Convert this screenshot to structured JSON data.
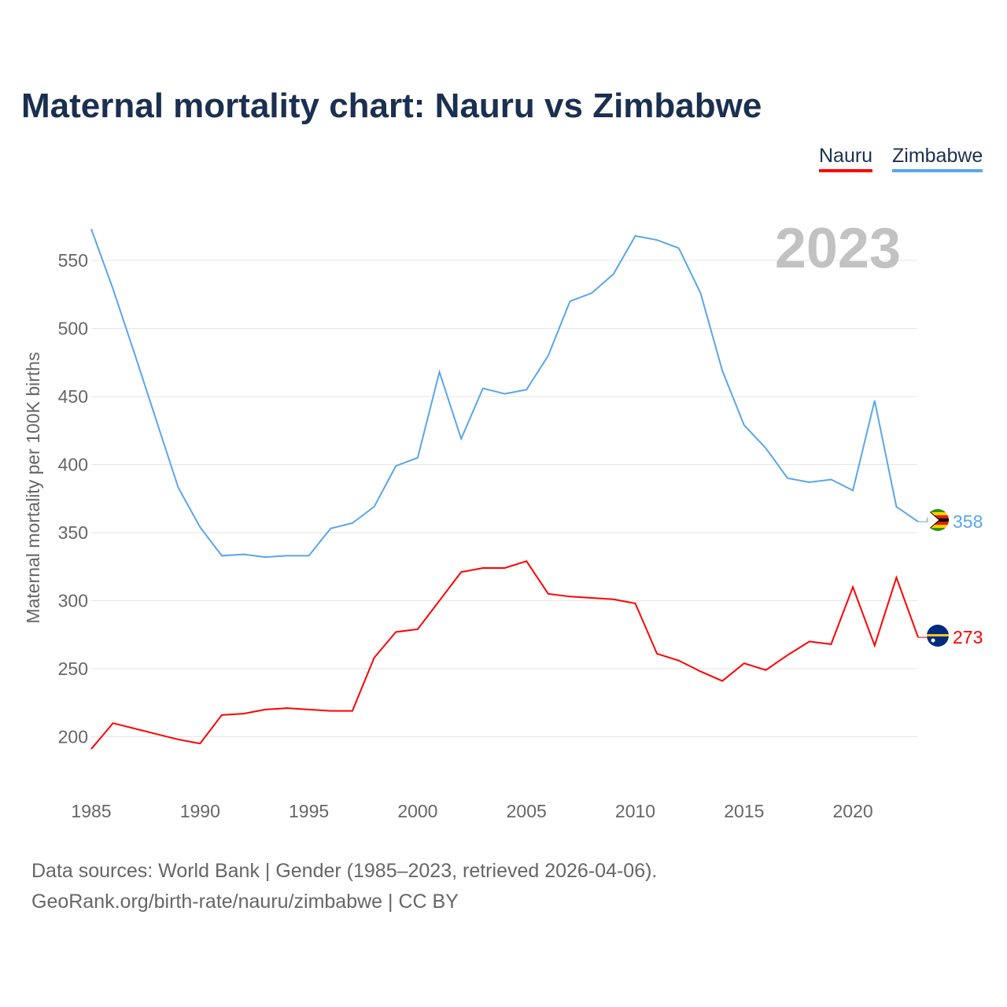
{
  "chart_data": {
    "type": "line",
    "title": "Maternal mortality chart: Nauru vs Zimbabwe",
    "xlabel": "",
    "ylabel": "Maternal mortality per 100K births",
    "year_label": "2023",
    "xlim": [
      1985,
      2023
    ],
    "ylim": [
      170,
      580
    ],
    "xticks": [
      1985,
      1990,
      1995,
      2000,
      2005,
      2010,
      2015,
      2020
    ],
    "yticks": [
      200,
      250,
      300,
      350,
      400,
      450,
      500,
      550
    ],
    "grid": true,
    "legend_placement": "top-right",
    "x": [
      1985,
      1986,
      1987,
      1988,
      1989,
      1990,
      1991,
      1992,
      1993,
      1994,
      1995,
      1996,
      1997,
      1998,
      1999,
      2000,
      2001,
      2002,
      2003,
      2004,
      2005,
      2006,
      2007,
      2008,
      2009,
      2010,
      2011,
      2012,
      2013,
      2014,
      2015,
      2016,
      2017,
      2018,
      2019,
      2020,
      2021,
      2022,
      2023
    ],
    "series": [
      {
        "name": "Nauru",
        "color": "#ff0000",
        "end_label": "273",
        "values": [
          191,
          210,
          206,
          202,
          198,
          195,
          216,
          217,
          220,
          221,
          220,
          219,
          219,
          258,
          277,
          279,
          300,
          321,
          324,
          324,
          329,
          305,
          303,
          302,
          301,
          298,
          261,
          256,
          248,
          241,
          254,
          249,
          260,
          270,
          268,
          310,
          267,
          317,
          273
        ]
      },
      {
        "name": "Zimbabwe",
        "color": "#5aa6ea",
        "end_label": "358",
        "values": [
          573,
          529,
          481,
          432,
          383,
          354,
          333,
          334,
          332,
          333,
          333,
          353,
          357,
          369,
          399,
          405,
          468,
          419,
          456,
          452,
          455,
          480,
          520,
          526,
          540,
          568,
          565,
          559,
          526,
          469,
          429,
          412,
          390,
          387,
          389,
          381,
          447,
          369,
          358
        ]
      }
    ]
  },
  "footer": {
    "line1": "Data sources: World Bank | Gender (1985–2023, retrieved 2026-04-06).",
    "line2": "GeoRank.org/birth-rate/nauru/zimbabwe | CC BY"
  }
}
